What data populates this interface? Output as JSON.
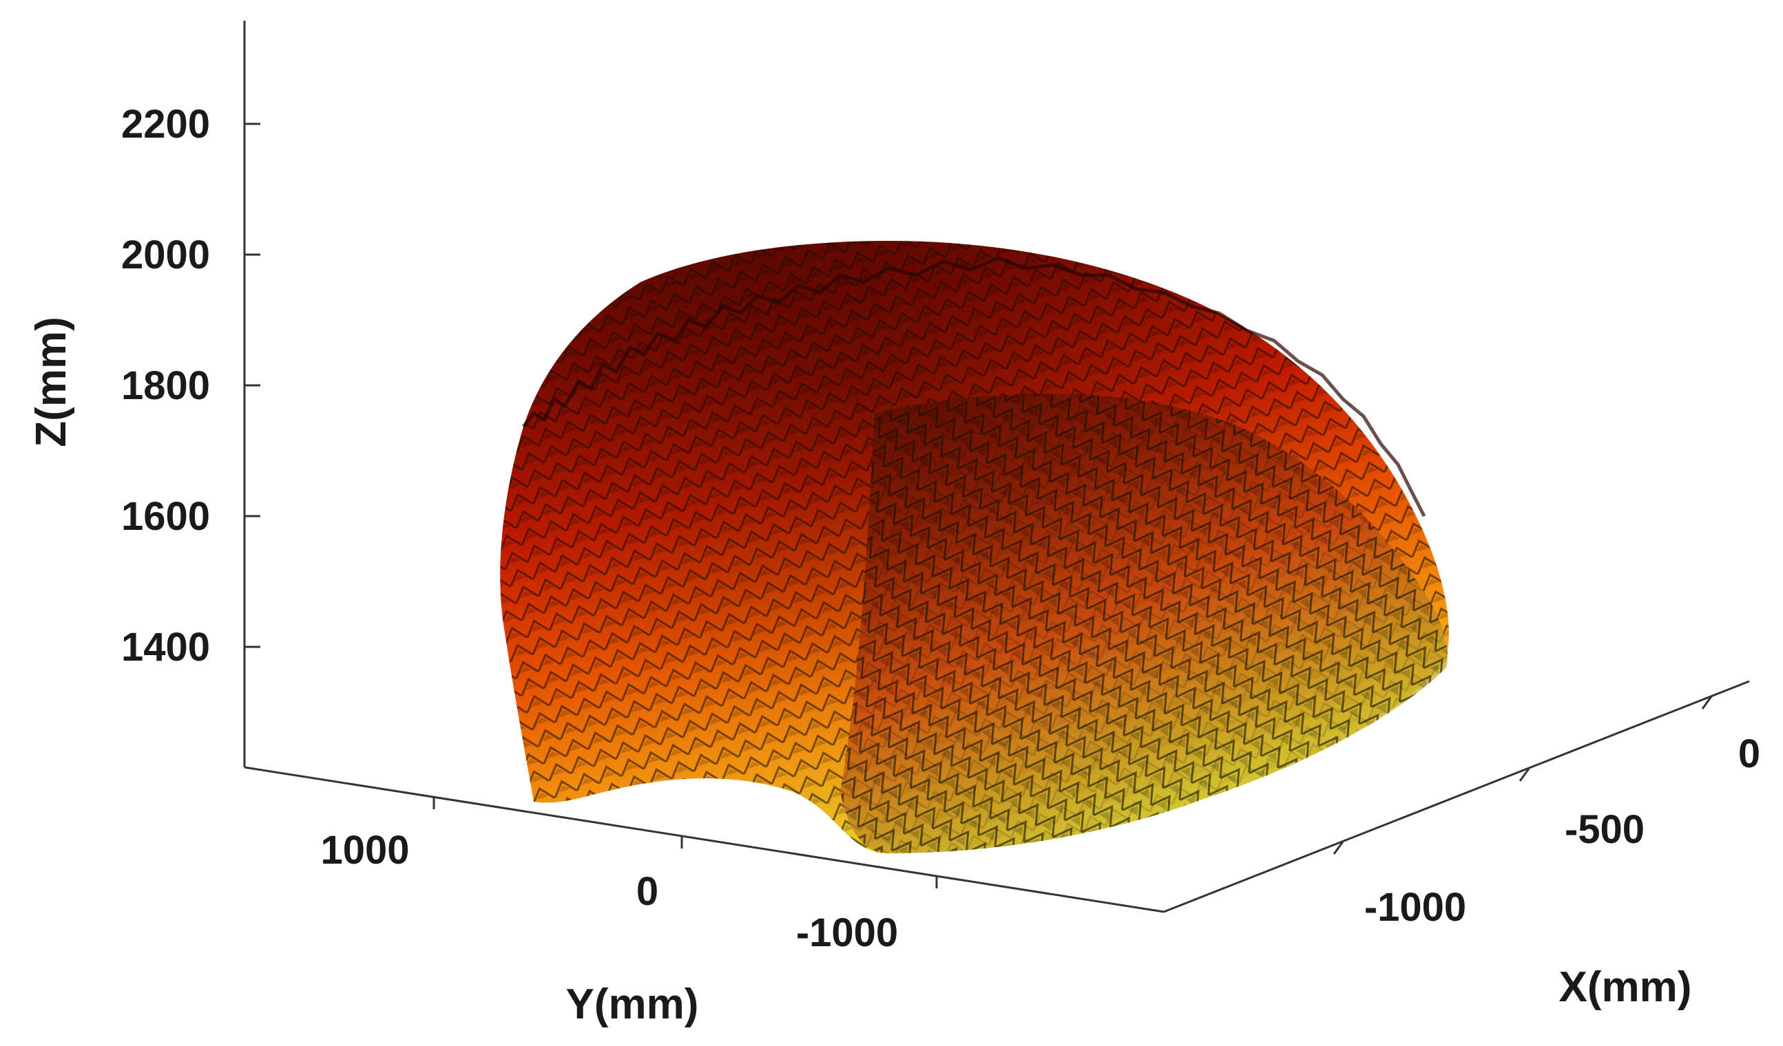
{
  "chart_data": {
    "type": "surface3d",
    "title": "",
    "xlabel": "X(mm)",
    "ylabel": "Y(mm)",
    "zlabel": "Z(mm)",
    "x_ticks": [
      "0",
      "-500",
      "-1000"
    ],
    "y_ticks": [
      "1000",
      "0",
      "-1000"
    ],
    "z_ticks": [
      "2200",
      "2000",
      "1800",
      "1600",
      "1400"
    ],
    "xlim": [
      -1200,
      200
    ],
    "ylim": [
      -1500,
      1500
    ],
    "zlim": [
      1250,
      2350
    ],
    "colormap": [
      "#5a0a00",
      "#8e0c00",
      "#d41f00",
      "#f05a00",
      "#f89a10",
      "#e8e030"
    ],
    "surface_description_values": {
      "z_top_approx": 2000,
      "z_bottom_approx": 1300
    },
    "grid": false
  }
}
